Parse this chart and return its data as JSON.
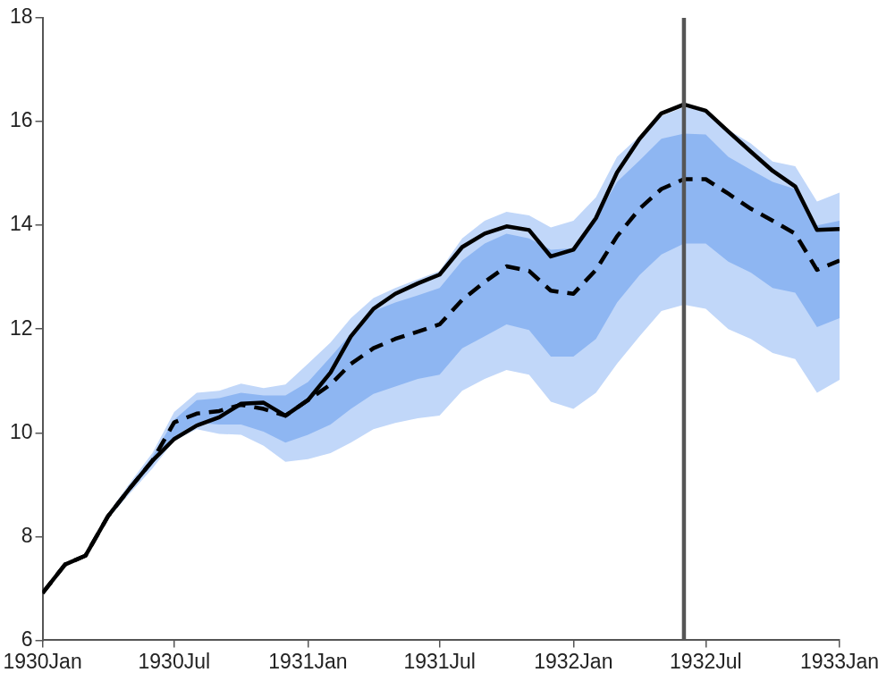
{
  "chart_data": {
    "type": "line",
    "x": [
      "1930-01",
      "1930-02",
      "1930-03",
      "1930-04",
      "1930-05",
      "1930-06",
      "1930-07",
      "1930-08",
      "1930-09",
      "1930-10",
      "1930-11",
      "1930-12",
      "1931-01",
      "1931-02",
      "1931-03",
      "1931-04",
      "1931-05",
      "1931-06",
      "1931-07",
      "1931-08",
      "1931-09",
      "1931-10",
      "1931-11",
      "1931-12",
      "1932-01",
      "1932-02",
      "1932-03",
      "1932-04",
      "1932-05",
      "1932-06",
      "1932-07",
      "1932-08",
      "1932-09",
      "1932-10",
      "1932-11",
      "1932-12",
      "1933-01"
    ],
    "series": [
      {
        "type": "area",
        "color": "#c1d7f9",
        "values": [
          null,
          null,
          null,
          null,
          null,
          null,
          null,
          null,
          null,
          null,
          null,
          null,
          null,
          null,
          null,
          null,
          null,
          null,
          null,
          null,
          null,
          null,
          null,
          null,
          null,
          null,
          null,
          null,
          null,
          null,
          null,
          null,
          null,
          null,
          null,
          null,
          null
        ],
        "lower": [
          6.91,
          7.46,
          7.63,
          8.34,
          8.83,
          9.31,
          9.85,
          10.07,
          9.98,
          9.96,
          9.75,
          9.44,
          9.49,
          9.61,
          9.81,
          10.07,
          10.19,
          10.28,
          10.33,
          10.81,
          11.04,
          11.21,
          11.12,
          10.6,
          10.46,
          10.77,
          11.33,
          11.86,
          12.35,
          12.47,
          12.39,
          12.0,
          11.81,
          11.54,
          11.42,
          10.77,
          11.02
        ],
        "upper": [
          6.91,
          7.46,
          7.63,
          8.44,
          9.03,
          9.61,
          10.4,
          10.77,
          10.81,
          10.95,
          10.86,
          10.93,
          11.33,
          11.74,
          12.21,
          12.6,
          12.79,
          12.96,
          13.12,
          13.75,
          14.09,
          14.26,
          14.19,
          13.96,
          14.09,
          14.54,
          15.32,
          15.72,
          16.11,
          16.28,
          16.19,
          15.84,
          15.58,
          15.23,
          15.14,
          14.46,
          14.63
        ]
      },
      {
        "type": "area",
        "color": "#8eb6f2",
        "values": [
          null,
          null,
          null,
          null,
          null,
          null,
          null,
          null,
          null,
          null,
          null,
          null,
          null,
          null,
          null,
          null,
          null,
          null,
          null,
          null,
          null,
          null,
          null,
          null,
          null,
          null,
          null,
          null,
          null,
          null,
          null,
          null,
          null,
          null,
          null,
          null,
          null
        ],
        "lower": [
          6.91,
          7.46,
          7.63,
          8.37,
          8.88,
          9.38,
          9.93,
          10.19,
          10.16,
          10.16,
          10.02,
          9.81,
          9.96,
          10.16,
          10.46,
          10.75,
          10.89,
          11.04,
          11.12,
          11.63,
          11.86,
          12.09,
          11.98,
          11.47,
          11.47,
          11.81,
          12.51,
          13.04,
          13.44,
          13.65,
          13.65,
          13.3,
          13.09,
          12.79,
          12.7,
          12.04,
          12.21
        ],
        "upper": [
          6.91,
          7.46,
          7.63,
          8.41,
          8.98,
          9.54,
          10.25,
          10.63,
          10.67,
          10.77,
          10.72,
          10.72,
          10.98,
          11.46,
          11.91,
          12.35,
          12.51,
          12.65,
          12.79,
          13.32,
          13.65,
          13.84,
          13.75,
          13.53,
          13.56,
          14.14,
          14.84,
          15.25,
          15.67,
          15.77,
          15.75,
          15.32,
          15.07,
          14.84,
          14.7,
          14.0,
          14.09
        ]
      },
      {
        "type": "line",
        "color": "#000000",
        "line_style": "solid",
        "values": [
          6.91,
          7.46,
          7.63,
          8.39,
          8.93,
          9.46,
          9.88,
          10.14,
          10.3,
          10.56,
          10.58,
          10.33,
          10.63,
          11.16,
          11.86,
          12.39,
          12.68,
          12.88,
          13.05,
          13.58,
          13.84,
          13.98,
          13.91,
          13.4,
          13.53,
          14.14,
          15.02,
          15.67,
          16.16,
          16.33,
          16.21,
          15.81,
          15.42,
          15.05,
          14.75,
          13.91,
          13.93
        ]
      },
      {
        "type": "line",
        "color": "#000000",
        "line_style": "dashed",
        "values": [
          6.91,
          7.46,
          7.63,
          8.39,
          8.93,
          9.46,
          10.2,
          10.37,
          10.42,
          10.54,
          10.46,
          10.33,
          10.63,
          10.93,
          11.33,
          11.63,
          11.81,
          11.95,
          12.09,
          12.56,
          12.91,
          13.21,
          13.12,
          12.74,
          12.68,
          13.14,
          13.79,
          14.32,
          14.7,
          14.89,
          14.89,
          14.61,
          14.32,
          14.09,
          13.84,
          13.14,
          13.32
        ]
      }
    ],
    "xlim": [
      "1930-01",
      "1933-01"
    ],
    "xticks": [
      {
        "value": "1930-01",
        "label": "1930Jan"
      },
      {
        "value": "1930-07",
        "label": "1930Jul"
      },
      {
        "value": "1931-01",
        "label": "1931Jan"
      },
      {
        "value": "1931-07",
        "label": "1931Jul"
      },
      {
        "value": "1932-01",
        "label": "1932Jan"
      },
      {
        "value": "1932-07",
        "label": "1932Jul"
      },
      {
        "value": "1933-01",
        "label": "1933Jan"
      }
    ],
    "ylim": [
      6,
      18
    ],
    "yticks": [
      6,
      8,
      10,
      12,
      14,
      16,
      18
    ],
    "ref_lines": [
      {
        "axis": "x",
        "value": "1932-06",
        "color": "#555555",
        "line_style": "solid"
      }
    ]
  }
}
